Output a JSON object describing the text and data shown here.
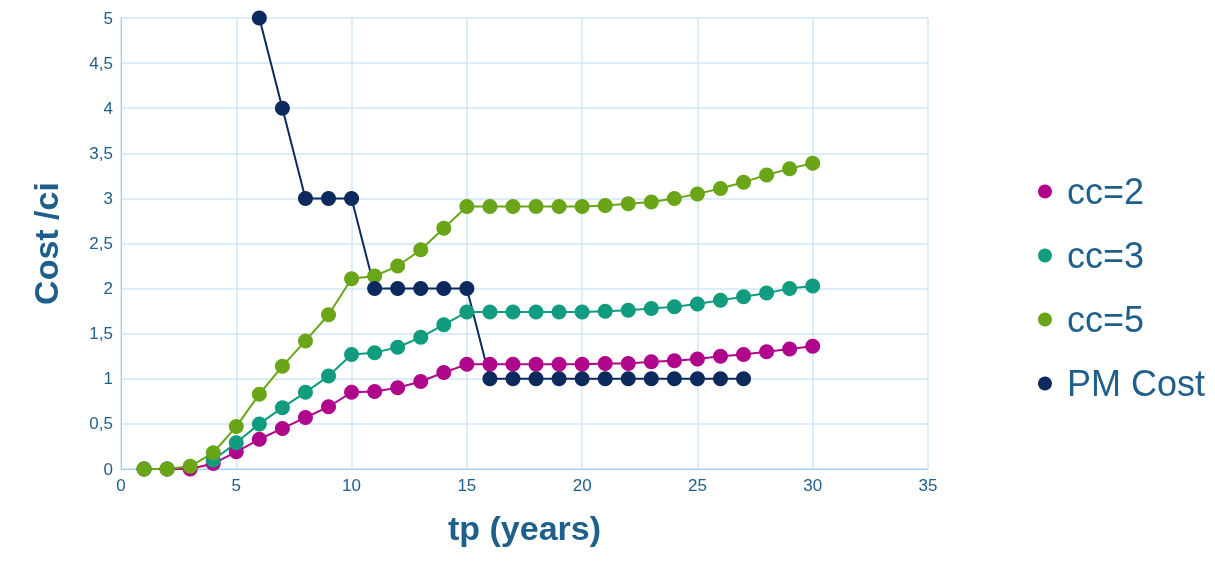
{
  "chart_data": {
    "type": "line",
    "xlabel": "tp (years)",
    "ylabel": "Cost /ci",
    "x": [
      1,
      2,
      3,
      4,
      5,
      6,
      7,
      8,
      9,
      10,
      11,
      12,
      13,
      14,
      15,
      16,
      17,
      18,
      19,
      20,
      21,
      22,
      23,
      24,
      25,
      26,
      27,
      28,
      29,
      30
    ],
    "series": [
      {
        "name": "cc=2",
        "color": "#b0068c",
        "values": [
          0,
          0,
          0,
          0.06,
          0.19,
          0.33,
          0.45,
          0.57,
          0.69,
          0.85,
          0.86,
          0.9,
          0.97,
          1.07,
          1.16,
          1.16,
          1.16,
          1.16,
          1.16,
          1.16,
          1.17,
          1.17,
          1.19,
          1.2,
          1.22,
          1.25,
          1.27,
          1.3,
          1.33,
          1.36
        ]
      },
      {
        "name": "cc=3",
        "color": "#119b7f",
        "values": [
          0,
          0,
          null,
          0.1,
          0.29,
          0.5,
          0.68,
          0.85,
          1.03,
          1.27,
          1.29,
          1.35,
          1.46,
          1.6,
          1.74,
          1.74,
          1.74,
          1.74,
          1.74,
          1.74,
          1.75,
          1.76,
          1.78,
          1.8,
          1.83,
          1.87,
          1.91,
          1.95,
          2.0,
          2.03
        ]
      },
      {
        "name": "cc=5",
        "color": "#6aa518",
        "values": [
          0,
          0,
          0.03,
          0.18,
          0.47,
          0.83,
          1.14,
          1.42,
          1.71,
          2.11,
          2.14,
          2.25,
          2.43,
          2.67,
          2.91,
          2.91,
          2.91,
          2.91,
          2.91,
          2.91,
          2.92,
          2.94,
          2.96,
          3.0,
          3.05,
          3.11,
          3.18,
          3.26,
          3.33,
          3.39
        ]
      },
      {
        "name": "PM Cost",
        "color": "#0c2a5e",
        "x": [
          6,
          7,
          8,
          9,
          10,
          11,
          12,
          13,
          14,
          15,
          16,
          17,
          18,
          19,
          20,
          21,
          22,
          23,
          24,
          25,
          26,
          27
        ],
        "values": [
          5,
          4,
          3,
          3,
          3,
          2,
          2,
          2,
          2,
          2,
          1,
          1,
          1,
          1,
          1,
          1,
          1,
          1,
          1,
          1,
          1,
          1
        ]
      }
    ],
    "xlim": [
      0,
      35
    ],
    "xticks": [
      0,
      5,
      10,
      15,
      20,
      25,
      30,
      35
    ],
    "ylim": [
      0,
      5
    ],
    "yticks": [
      0,
      {
        "value": 0.5,
        "label": "0,5"
      },
      1,
      {
        "value": 1.5,
        "label": "1,5"
      },
      2,
      {
        "value": 2.5,
        "label": "2,5"
      },
      3,
      {
        "value": 3.5,
        "label": "3,5"
      },
      4,
      {
        "value": 4.5,
        "label": "4,5"
      },
      5
    ],
    "grid": true,
    "legend": "right",
    "marker": "circle",
    "line_style": "solid"
  }
}
